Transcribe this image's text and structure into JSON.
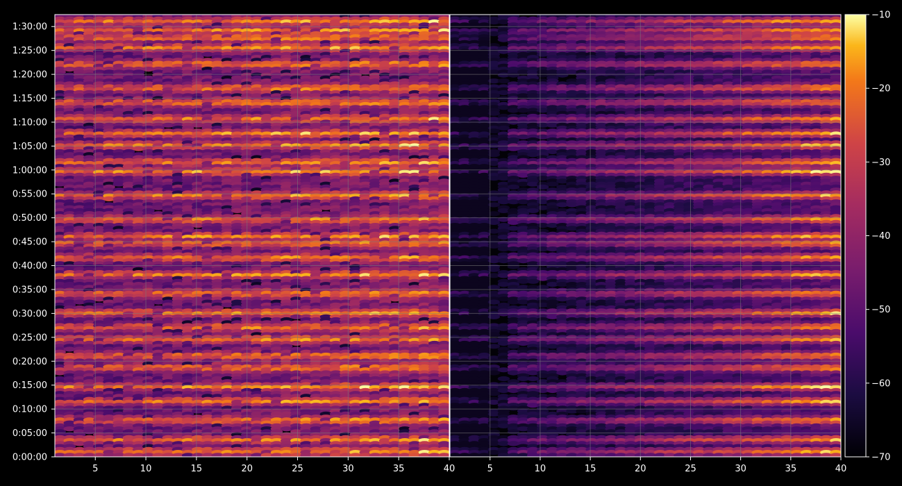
{
  "chart_data": {
    "type": "heatmap",
    "title": "",
    "panels": [
      {
        "name": "",
        "x_min": 1,
        "x_max": 40
      },
      {
        "name": "",
        "x_min": 1,
        "x_max": 40
      }
    ],
    "x_ticks": [
      "5",
      "10",
      "15",
      "20",
      "25",
      "30",
      "35",
      "40"
    ],
    "x_tick_values": [
      5,
      10,
      15,
      20,
      25,
      30,
      35,
      40
    ],
    "y_ticks": [
      "0:00:00",
      "0:05:00",
      "0:10:00",
      "0:15:00",
      "0:20:00",
      "0:25:00",
      "0:30:00",
      "0:35:00",
      "0:40:00",
      "0:45:00",
      "0:50:00",
      "0:55:00",
      "1:00:00",
      "1:05:00",
      "1:10:00",
      "1:15:00",
      "1:20:00",
      "1:25:00",
      "1:30:00"
    ],
    "y_range_minutes": [
      0,
      92.5
    ],
    "colorbar": {
      "ticks": [
        "−10",
        "−20",
        "−30",
        "−40",
        "−50",
        "−60",
        "−70"
      ],
      "tick_values": [
        -10,
        -20,
        -30,
        -40,
        -50,
        -60,
        -70
      ],
      "range": [
        -70,
        -10
      ],
      "colormap": "inferno"
    },
    "grid": true,
    "band_intensity_minutes": {
      "strong": [
        1.5,
        3.5,
        5,
        7,
        10.5,
        15.5,
        18.5,
        22,
        25,
        27.5,
        31,
        33,
        38,
        43,
        46.5,
        48,
        51,
        54.5,
        58.5,
        62.5,
        65.5,
        68,
        71.5,
        74,
        78,
        81,
        85,
        89,
        91.5
      ],
      "left_peak_db": -15,
      "right_peak_db": -32
    }
  },
  "colors": {
    "background": "#000000",
    "grid": "#7a7a7a",
    "text": "#ffffff"
  }
}
